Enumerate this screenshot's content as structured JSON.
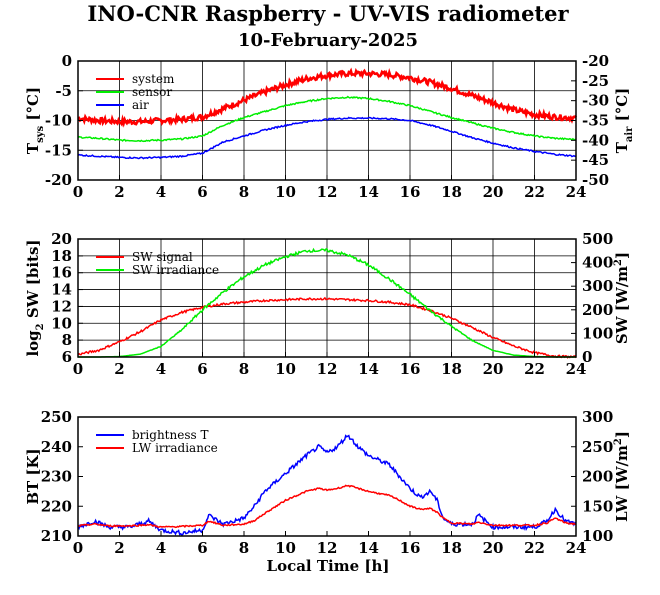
{
  "title": "INO-CNR Raspberry - UV-VIS radiometer",
  "subtitle": "10-February-2025",
  "xlabel": "Local Time [h]",
  "chart_data": [
    {
      "type": "line",
      "ylabel": "T_sys [°C]",
      "ylabel_main": "T",
      "ylabel_sub": "sys",
      "ylabel_tail": " [°C]",
      "y2label": "T_air [°C]",
      "y2label_main": "T",
      "y2label_sub": "air",
      "y2label_tail": " [°C]",
      "xlim": [
        0,
        24
      ],
      "ylim": [
        -20,
        0
      ],
      "y2lim": [
        -50,
        -20
      ],
      "xticks": [
        0,
        2,
        4,
        6,
        8,
        10,
        12,
        14,
        16,
        18,
        20,
        22,
        24
      ],
      "yticks": [
        -20,
        -15,
        -10,
        -5,
        0
      ],
      "y2ticks": [
        -50,
        -45,
        -40,
        -35,
        -30,
        -25,
        -20
      ],
      "grid": true,
      "legend_position": "top-left",
      "series": [
        {
          "name": "system",
          "color": "#ff0000",
          "axis": "left",
          "x": [
            0,
            1,
            2,
            3,
            4,
            5,
            6,
            7,
            8,
            9,
            10,
            11,
            12,
            13,
            14,
            15,
            16,
            17,
            18,
            19,
            20,
            21,
            22,
            23,
            24
          ],
          "y": [
            -9.6,
            -10.0,
            -10.2,
            -10.2,
            -10.0,
            -9.8,
            -9.4,
            -8.0,
            -6.6,
            -5.2,
            -4.0,
            -3.0,
            -2.4,
            -2.1,
            -2.1,
            -2.3,
            -2.8,
            -3.6,
            -4.6,
            -5.8,
            -7.0,
            -8.2,
            -9.0,
            -9.4,
            -9.6
          ]
        },
        {
          "name": "sensor",
          "color": "#00ee00",
          "axis": "left",
          "x": [
            0,
            1,
            2,
            3,
            4,
            5,
            6,
            7,
            8,
            9,
            10,
            11,
            12,
            13,
            14,
            15,
            16,
            17,
            18,
            19,
            20,
            21,
            22,
            23,
            24
          ],
          "y": [
            -12.8,
            -13.0,
            -13.3,
            -13.4,
            -13.3,
            -13.1,
            -12.6,
            -10.8,
            -9.5,
            -8.5,
            -7.5,
            -6.8,
            -6.3,
            -6.1,
            -6.3,
            -6.8,
            -7.5,
            -8.5,
            -9.5,
            -10.4,
            -11.3,
            -12.0,
            -12.6,
            -13.0,
            -13.2
          ]
        },
        {
          "name": "air",
          "color": "#0000ff",
          "axis": "left",
          "x": [
            0,
            1,
            2,
            3,
            4,
            5,
            6,
            7,
            8,
            9,
            10,
            11,
            12,
            13,
            14,
            15,
            16,
            17,
            18,
            19,
            20,
            21,
            22,
            23,
            24
          ],
          "y": [
            -15.8,
            -16.0,
            -16.2,
            -16.3,
            -16.2,
            -16.0,
            -15.5,
            -13.6,
            -12.6,
            -11.6,
            -10.8,
            -10.2,
            -9.8,
            -9.6,
            -9.6,
            -9.7,
            -10.0,
            -10.8,
            -11.8,
            -12.9,
            -13.8,
            -14.6,
            -15.2,
            -15.7,
            -16.0
          ]
        }
      ]
    },
    {
      "type": "line",
      "ylabel": "log2 SW [bits]",
      "ylabel_main": "log",
      "ylabel_sub": "2",
      "ylabel_tail": " SW [bits]",
      "y2label": "SW [W/m2]",
      "y2label_main": "SW [W/m",
      "y2label_sup": "2",
      "y2label_tail": "]",
      "xlim": [
        0,
        24
      ],
      "ylim": [
        6,
        20
      ],
      "y2lim": [
        0,
        500
      ],
      "xticks": [
        0,
        2,
        4,
        6,
        8,
        10,
        12,
        14,
        16,
        18,
        20,
        22,
        24
      ],
      "yticks": [
        6,
        8,
        10,
        12,
        14,
        16,
        18,
        20
      ],
      "y2ticks": [
        0,
        100,
        200,
        300,
        400,
        500
      ],
      "grid": true,
      "legend_position": "top-left",
      "series": [
        {
          "name": "SW signal",
          "color": "#ff0000",
          "axis": "left",
          "x": [
            0,
            1,
            2,
            3,
            4,
            5,
            6,
            7,
            8,
            9,
            10,
            11,
            12,
            13,
            14,
            15,
            16,
            17,
            18,
            19,
            20,
            21,
            22,
            23,
            24
          ],
          "y": [
            6.3,
            6.8,
            7.8,
            9.0,
            10.4,
            11.3,
            11.9,
            12.3,
            12.5,
            12.7,
            12.8,
            12.9,
            12.9,
            12.8,
            12.7,
            12.5,
            12.2,
            11.5,
            10.6,
            9.5,
            8.3,
            7.3,
            6.5,
            6.1,
            6.0
          ]
        },
        {
          "name": "SW irradiance",
          "color": "#00ee00",
          "axis": "right",
          "x": [
            0,
            1,
            2,
            3,
            4,
            5,
            6,
            7,
            8,
            9,
            10,
            11,
            12,
            13,
            14,
            15,
            16,
            17,
            18,
            19,
            20,
            21,
            22,
            23,
            24
          ],
          "y": [
            0,
            0,
            2,
            12,
            45,
            115,
            200,
            275,
            340,
            390,
            425,
            450,
            452,
            432,
            390,
            330,
            265,
            195,
            130,
            70,
            28,
            8,
            2,
            0,
            0
          ]
        }
      ]
    },
    {
      "type": "line",
      "ylabel": "BT [K]",
      "y2label": "LW [W/m2]",
      "y2label_main": "LW [W/m",
      "y2label_sup": "2",
      "y2label_tail": "]",
      "xlim": [
        0,
        24
      ],
      "ylim": [
        210,
        250
      ],
      "y2lim": [
        100,
        300
      ],
      "xticks": [
        0,
        2,
        4,
        6,
        8,
        10,
        12,
        14,
        16,
        18,
        20,
        22,
        24
      ],
      "yticks": [
        210,
        220,
        230,
        240,
        250
      ],
      "y2ticks": [
        100,
        150,
        200,
        250,
        300
      ],
      "grid": false,
      "legend_position": "top-left",
      "series": [
        {
          "name": "brightness T",
          "color": "#0000ff",
          "axis": "left",
          "x": [
            0,
            0.8,
            1.5,
            2.5,
            3.4,
            4,
            5,
            6,
            6.3,
            7,
            8,
            8.5,
            9,
            10,
            11,
            11.6,
            12,
            12.5,
            13,
            13.5,
            14,
            15,
            15.5,
            16,
            16.5,
            17,
            17.3,
            17.6,
            18,
            19,
            19.3,
            20,
            21,
            22,
            22.6,
            23,
            23.5,
            24
          ],
          "y": [
            213,
            215,
            213,
            213,
            215,
            212,
            211,
            212,
            217,
            214,
            216,
            220,
            225,
            231,
            237,
            240,
            238,
            240,
            244,
            240,
            237,
            234,
            230,
            226,
            223,
            225,
            222,
            216,
            214,
            214,
            217,
            213,
            213,
            213,
            215,
            219,
            215,
            214
          ]
        },
        {
          "name": "LW irradiance",
          "color": "#ff0000",
          "axis": "right",
          "x": [
            0,
            0.8,
            1.5,
            2.5,
            3.4,
            4,
            5,
            6,
            6.3,
            7,
            8,
            8.5,
            9,
            10,
            11,
            11.6,
            12,
            12.5,
            13,
            13.5,
            14,
            15,
            15.5,
            16,
            16.5,
            17,
            17.3,
            17.6,
            18,
            19,
            19.3,
            20,
            21,
            22,
            22.6,
            23,
            23.5,
            24
          ],
          "y": [
            117,
            120,
            117,
            117,
            119,
            115,
            116,
            118,
            125,
            118,
            120,
            126,
            138,
            160,
            175,
            180,
            177,
            180,
            185,
            180,
            175,
            168,
            160,
            150,
            145,
            146,
            140,
            130,
            122,
            120,
            123,
            118,
            118,
            118,
            122,
            130,
            122,
            120
          ]
        }
      ]
    }
  ]
}
